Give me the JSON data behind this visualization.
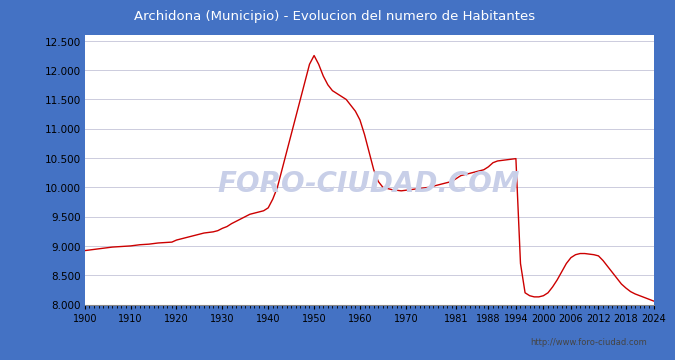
{
  "title": "Archidona (Municipio) - Evolucion del numero de Habitantes",
  "title_bg_color": "#4472c4",
  "title_text_color": "white",
  "outer_bg_color": "#4472c4",
  "plot_bg_color": "#ffffff",
  "grid_color": "#ccccdd",
  "line_color": "#cc0000",
  "watermark": "FORO-CIUDAD.COM",
  "watermark_color": "#c8cfe8",
  "url_text": "http://www.foro-ciudad.com",
  "url_color": "#444444",
  "bottom_bg_color": "#e8eaf0",
  "ylim": [
    8000,
    12600
  ],
  "yticks": [
    8000,
    8500,
    9000,
    9500,
    10000,
    10500,
    11000,
    11500,
    12000,
    12500
  ],
  "xticks": [
    1900,
    1910,
    1920,
    1930,
    1940,
    1950,
    1960,
    1970,
    1981,
    1988,
    1994,
    2000,
    2006,
    2012,
    2018,
    2024
  ],
  "data": [
    [
      1900,
      8920
    ],
    [
      1901,
      8930
    ],
    [
      1902,
      8940
    ],
    [
      1903,
      8950
    ],
    [
      1904,
      8960
    ],
    [
      1905,
      8970
    ],
    [
      1906,
      8980
    ],
    [
      1907,
      8985
    ],
    [
      1908,
      8990
    ],
    [
      1909,
      8995
    ],
    [
      1910,
      9000
    ],
    [
      1911,
      9010
    ],
    [
      1912,
      9020
    ],
    [
      1913,
      9025
    ],
    [
      1914,
      9030
    ],
    [
      1915,
      9040
    ],
    [
      1916,
      9050
    ],
    [
      1917,
      9055
    ],
    [
      1918,
      9060
    ],
    [
      1919,
      9065
    ],
    [
      1920,
      9100
    ],
    [
      1921,
      9120
    ],
    [
      1922,
      9140
    ],
    [
      1923,
      9160
    ],
    [
      1924,
      9180
    ],
    [
      1925,
      9200
    ],
    [
      1926,
      9220
    ],
    [
      1927,
      9230
    ],
    [
      1928,
      9240
    ],
    [
      1929,
      9260
    ],
    [
      1930,
      9300
    ],
    [
      1931,
      9330
    ],
    [
      1932,
      9380
    ],
    [
      1933,
      9420
    ],
    [
      1934,
      9460
    ],
    [
      1935,
      9500
    ],
    [
      1936,
      9540
    ],
    [
      1937,
      9560
    ],
    [
      1938,
      9580
    ],
    [
      1939,
      9600
    ],
    [
      1940,
      9650
    ],
    [
      1941,
      9800
    ],
    [
      1942,
      10000
    ],
    [
      1943,
      10300
    ],
    [
      1944,
      10600
    ],
    [
      1945,
      10900
    ],
    [
      1946,
      11200
    ],
    [
      1947,
      11500
    ],
    [
      1948,
      11800
    ],
    [
      1949,
      12100
    ],
    [
      1950,
      12250
    ],
    [
      1951,
      12100
    ],
    [
      1952,
      11900
    ],
    [
      1953,
      11750
    ],
    [
      1954,
      11650
    ],
    [
      1955,
      11600
    ],
    [
      1956,
      11550
    ],
    [
      1957,
      11500
    ],
    [
      1958,
      11400
    ],
    [
      1959,
      11300
    ],
    [
      1960,
      11150
    ],
    [
      1961,
      10900
    ],
    [
      1962,
      10600
    ],
    [
      1963,
      10300
    ],
    [
      1964,
      10100
    ],
    [
      1965,
      10000
    ],
    [
      1966,
      9980
    ],
    [
      1967,
      9960
    ],
    [
      1968,
      9950
    ],
    [
      1969,
      9940
    ],
    [
      1970,
      9950
    ],
    [
      1971,
      9960
    ],
    [
      1972,
      9970
    ],
    [
      1973,
      9980
    ],
    [
      1974,
      9990
    ],
    [
      1975,
      10000
    ],
    [
      1976,
      10020
    ],
    [
      1977,
      10040
    ],
    [
      1978,
      10060
    ],
    [
      1979,
      10080
    ],
    [
      1980,
      10100
    ],
    [
      1981,
      10150
    ],
    [
      1982,
      10200
    ],
    [
      1983,
      10220
    ],
    [
      1984,
      10240
    ],
    [
      1985,
      10260
    ],
    [
      1986,
      10280
    ],
    [
      1987,
      10300
    ],
    [
      1988,
      10350
    ],
    [
      1989,
      10420
    ],
    [
      1990,
      10450
    ],
    [
      1991,
      10460
    ],
    [
      1992,
      10470
    ],
    [
      1993,
      10480
    ],
    [
      1994,
      10490
    ],
    [
      1995,
      8700
    ],
    [
      1996,
      8200
    ],
    [
      1997,
      8150
    ],
    [
      1998,
      8130
    ],
    [
      1999,
      8130
    ],
    [
      2000,
      8150
    ],
    [
      2001,
      8200
    ],
    [
      2002,
      8300
    ],
    [
      2003,
      8420
    ],
    [
      2004,
      8560
    ],
    [
      2005,
      8700
    ],
    [
      2006,
      8800
    ],
    [
      2007,
      8850
    ],
    [
      2008,
      8870
    ],
    [
      2009,
      8870
    ],
    [
      2010,
      8860
    ],
    [
      2011,
      8850
    ],
    [
      2012,
      8830
    ],
    [
      2013,
      8750
    ],
    [
      2014,
      8650
    ],
    [
      2015,
      8550
    ],
    [
      2016,
      8450
    ],
    [
      2017,
      8350
    ],
    [
      2018,
      8280
    ],
    [
      2019,
      8220
    ],
    [
      2020,
      8180
    ],
    [
      2021,
      8150
    ],
    [
      2022,
      8120
    ],
    [
      2023,
      8090
    ],
    [
      2024,
      8060
    ]
  ]
}
